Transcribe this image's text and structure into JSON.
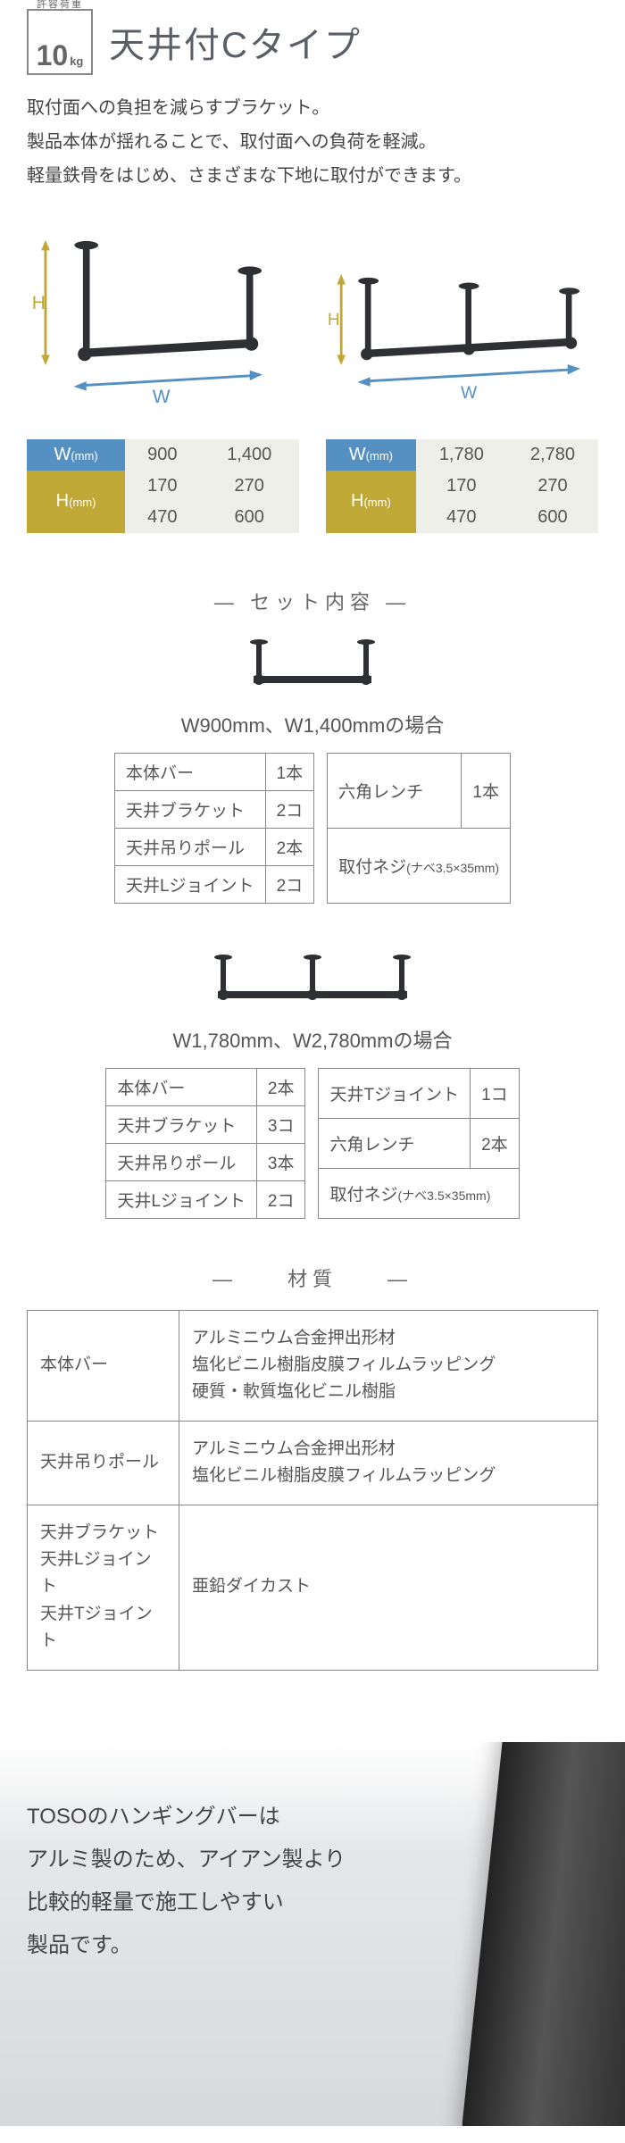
{
  "header": {
    "load_caption": "許容荷重",
    "load_value": "10",
    "load_unit": "kg",
    "title": "天井付Cタイプ"
  },
  "lead": {
    "l1": "取付面への負担を減らすブラケット。",
    "l2": "製品本体が揺れることで、取付面への負荷を軽減。",
    "l3": "軽量鉄骨をはじめ、さまざまな下地に取付ができます。"
  },
  "dim_labels": {
    "W": "W",
    "H": "H"
  },
  "dim_colors": {
    "w": "#5590c2",
    "h": "#bfa835",
    "bar": "#2e3033"
  },
  "dim_table_left": {
    "w_label": "W",
    "w_unit": "(mm)",
    "w1": "900",
    "w2": "1,400",
    "h_label": "H",
    "h_unit": "(mm)",
    "h1": "170",
    "h2": "270",
    "h3": "470",
    "h4": "600"
  },
  "dim_table_right": {
    "w_label": "W",
    "w_unit": "(mm)",
    "w1": "1,780",
    "w2": "2,780",
    "h_label": "H",
    "h_unit": "(mm)",
    "h1": "170",
    "h2": "270",
    "h3": "470",
    "h4": "600"
  },
  "set": {
    "heading": "― セット内容 ―",
    "caption_a": "W900mm、W1,400mmの場合",
    "caption_b": "W1,780mm、W2,780mmの場合",
    "parts_a_left": [
      {
        "label": "本体バー",
        "qty": "1本"
      },
      {
        "label": "天井ブラケット",
        "qty": "2コ"
      },
      {
        "label": "天井吊りポール",
        "qty": "2本"
      },
      {
        "label": "天井Lジョイント",
        "qty": "2コ"
      }
    ],
    "parts_a_right": [
      {
        "label": "六角レンチ",
        "qty": "1本"
      },
      {
        "label": "取付ネジ",
        "sub": "(ナベ3.5×35mm)"
      }
    ],
    "parts_b_left": [
      {
        "label": "本体バー",
        "qty": "2本"
      },
      {
        "label": "天井ブラケット",
        "qty": "3コ"
      },
      {
        "label": "天井吊りポール",
        "qty": "3本"
      },
      {
        "label": "天井Lジョイント",
        "qty": "2コ"
      }
    ],
    "parts_b_right": [
      {
        "label": "天井Tジョイント",
        "qty": "1コ"
      },
      {
        "label": "六角レンチ",
        "qty": "2本"
      },
      {
        "label": "取付ネジ",
        "sub": "(ナベ3.5×35mm)"
      }
    ]
  },
  "material": {
    "heading": "―　　材質　　―",
    "rows": [
      {
        "head": "本体バー",
        "body": "アルミニウム合金押出形材\n塩化ビニル樹脂皮膜フィルムラッピング\n硬質・軟質塩化ビニル樹脂"
      },
      {
        "head": "天井吊りポール",
        "body": "アルミニウム合金押出形材\n塩化ビニル樹脂皮膜フィルムラッピング"
      },
      {
        "head": "天井ブラケット\n天井Lジョイント\n天井Tジョイント",
        "body": "亜鉛ダイカスト"
      }
    ]
  },
  "footer": {
    "l1": "TOSOのハンギングバーは",
    "l2": "アルミ製のため、アイアン製より",
    "l3": "比較的軽量で施工しやすい",
    "l4": "製品です。"
  }
}
